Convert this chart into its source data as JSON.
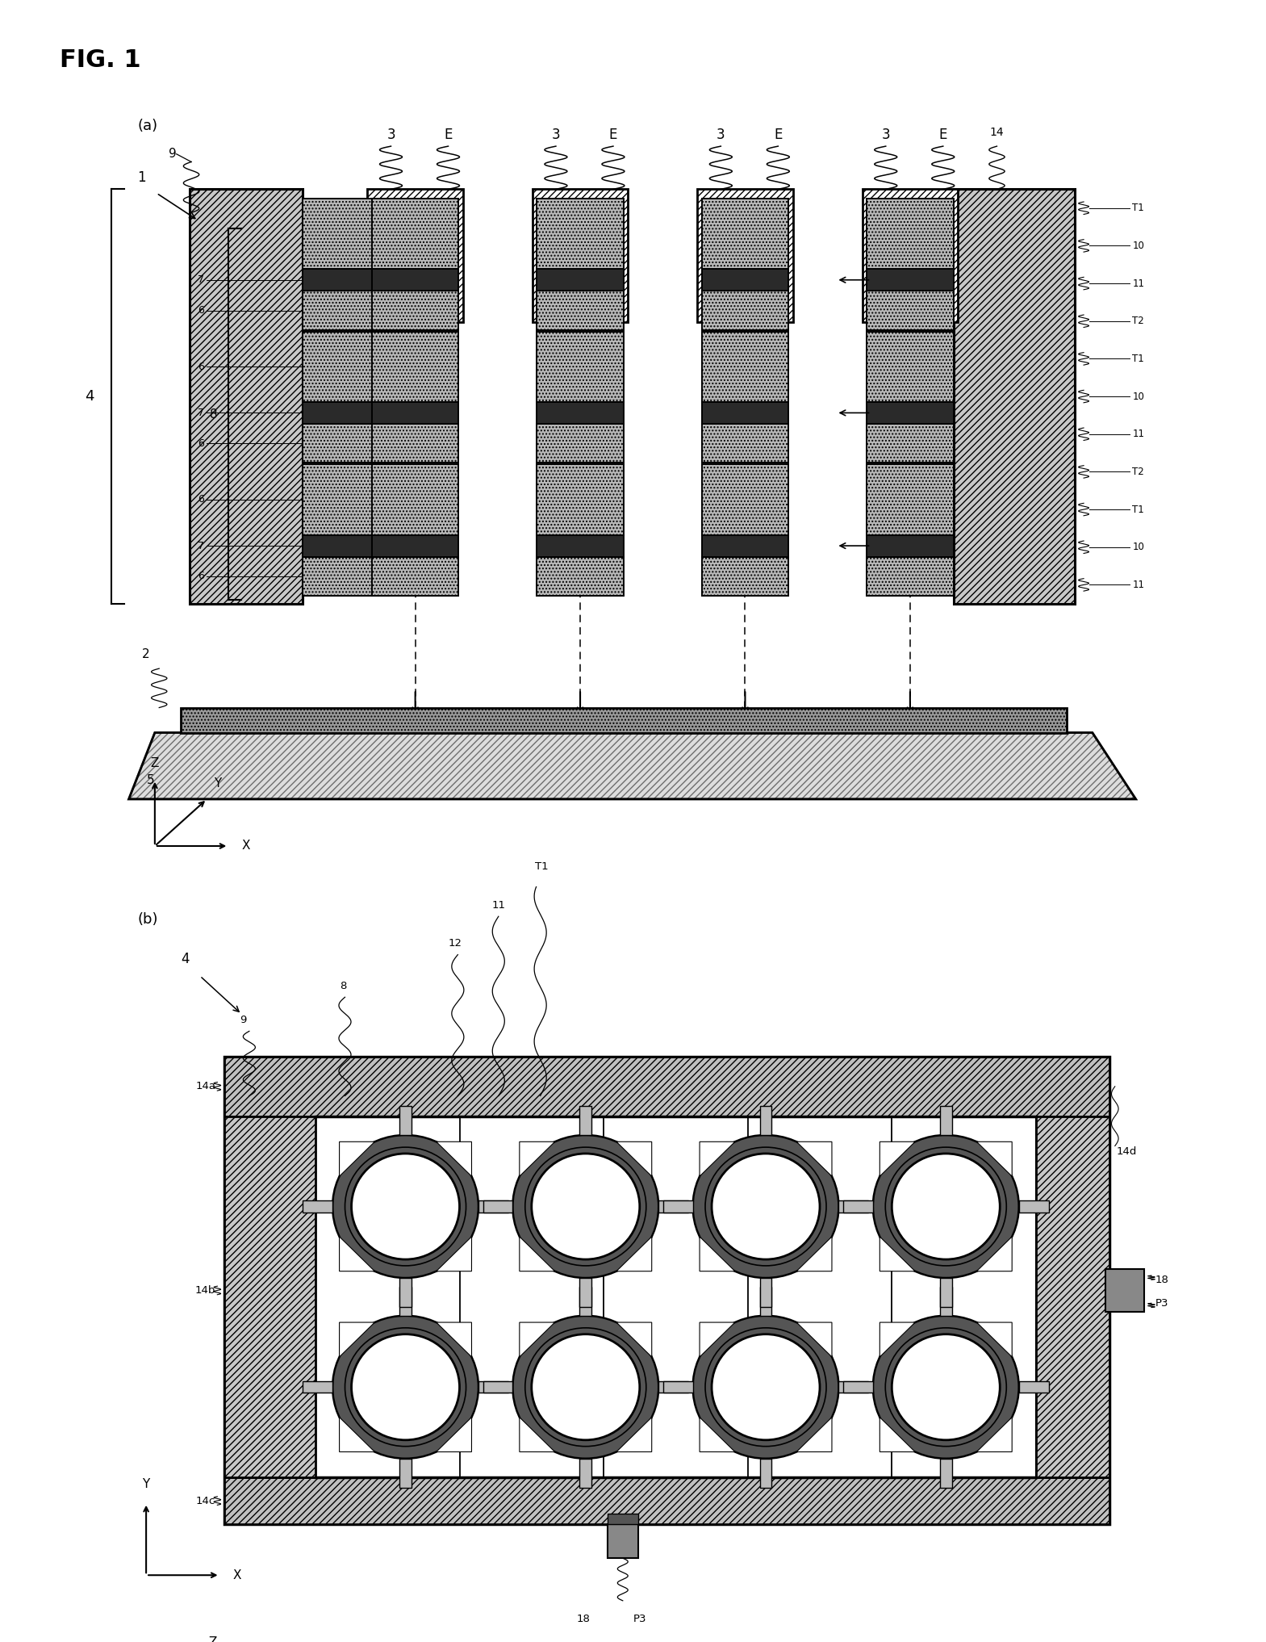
{
  "bg_color": "#ffffff",
  "fig_title": "FIG. 1",
  "label_a": "(a)",
  "label_b": "(b)",
  "gray_hatch": "#cccccc",
  "gray_med": "#aaaaaa",
  "gray_dark": "#444444",
  "black": "#000000",
  "white": "#ffffff"
}
